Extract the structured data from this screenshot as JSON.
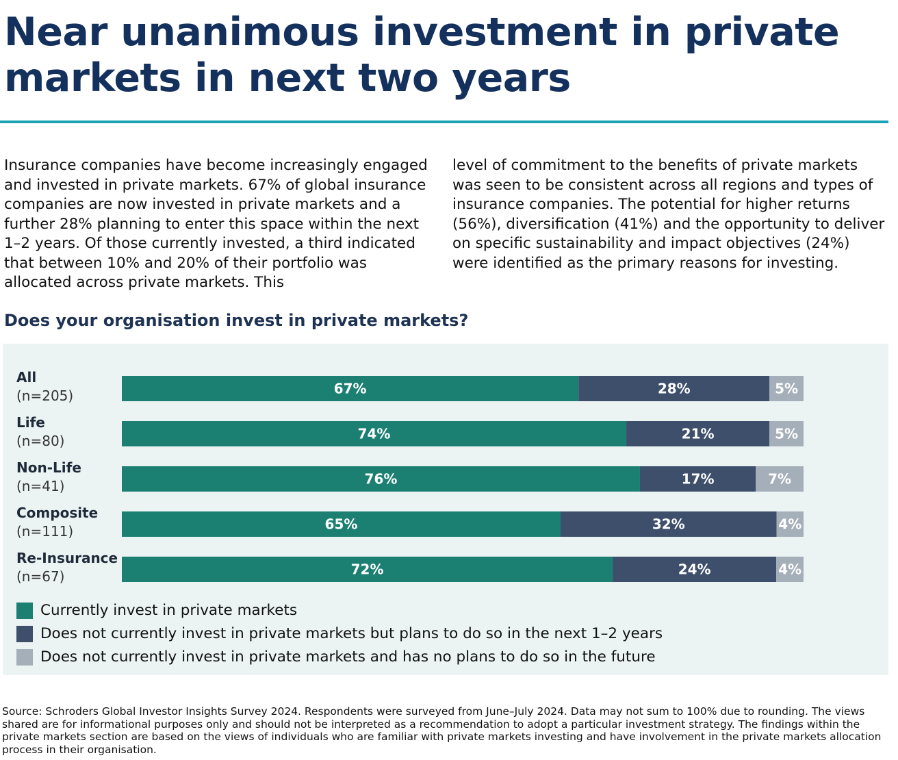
{
  "title": "Near unanimous investment in private markets in next two years",
  "intro_left": "Insurance companies have become increasingly engaged and invested in private markets. 67% of global insurance companies are now invested in private markets and a further 28% planning to enter this space within the next 1–2 years. Of those currently invested, a third indicated that between 10% and 20% of their portfolio was allocated across private markets.  This",
  "intro_right": "level of commitment to the benefits of private markets was seen to be consistent across all regions and types of insurance companies.  The potential for higher returns (56%), diversification (41%) and the opportunity to deliver on specific sustainability and impact objectives (24%) were identified as the primary reasons for investing.",
  "chart_heading": "Does your organisation invest in private markets?",
  "colors": {
    "title": "#14305c",
    "rule": "#1aa3b4",
    "panel_bg": "#ebf4f3",
    "currently": "#1b7f72",
    "plans": "#3d4f6b",
    "no_plans": "#a5afb9"
  },
  "chart_data": {
    "type": "bar",
    "orientation": "horizontal",
    "stacked": true,
    "categories": [
      "All",
      "Life",
      "Non-Life",
      "Composite",
      "Re-Insurance"
    ],
    "category_sizes": [
      "(n=205)",
      "(n=80)",
      "(n=41)",
      "(n=111)",
      "(n=67)"
    ],
    "series": [
      {
        "name": "Currently invest in private markets",
        "values": [
          67,
          74,
          76,
          65,
          72
        ],
        "labels": [
          "67%",
          "74%",
          "76%",
          "65%",
          "72%"
        ]
      },
      {
        "name": "Does not currently invest in private markets but plans to do so in the next 1–2 years",
        "values": [
          28,
          21,
          17,
          32,
          24
        ],
        "labels": [
          "28%",
          "21%",
          "17%",
          "32%",
          "24%"
        ]
      },
      {
        "name": "Does not currently invest in private markets and has no plans to do so in the future",
        "values": [
          5,
          5,
          7,
          4,
          4
        ],
        "labels": [
          "5%",
          "5%",
          "7%",
          "4%",
          "4%"
        ]
      }
    ],
    "legend_position": "bottom-left",
    "grid": false
  },
  "source": "Source: Schroders Global Investor Insights Survey 2024. Respondents were surveyed from June–July 2024. Data may not sum to 100% due to rounding. The views shared are for informational purposes only and should not be interpreted as a recommendation to adopt a particular investment strategy. The findings within the private markets section are based on the views of individuals who are familiar with private markets investing and have involvement in the private markets allocation process in their organisation."
}
